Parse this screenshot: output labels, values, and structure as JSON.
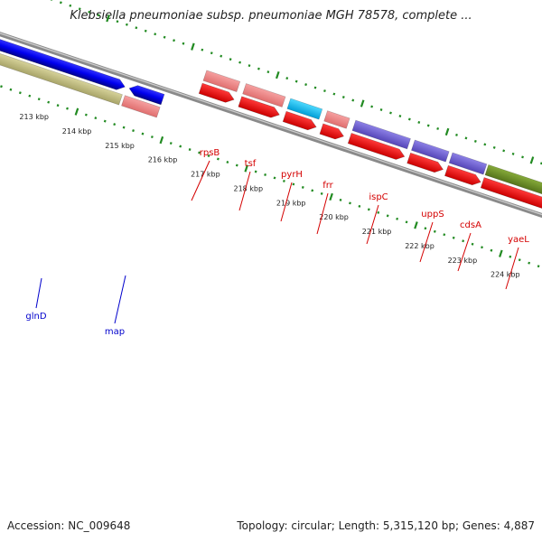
{
  "title": "Klebsiella pneumoniae subsp. pneumoniae MGH 78578, complete ...",
  "accession": "Accession: NC_009648",
  "topology": "Topology: circular; Length: 5,315,120 bp; Genes: 4,887",
  "ticks": [
    "213 kbp",
    "214 kbp",
    "215 kbp",
    "216 kbp",
    "217 kbp",
    "218 kbp",
    "219 kbp",
    "220 kbp",
    "221 kbp",
    "222 kbp",
    "223 kbp",
    "224 kbp"
  ],
  "genes": [
    {
      "name": "rpsB",
      "color": "#d40000"
    },
    {
      "name": "tsf",
      "color": "#d40000"
    },
    {
      "name": "pyrH",
      "color": "#d40000"
    },
    {
      "name": "frr",
      "color": "#d40000"
    },
    {
      "name": "ispC",
      "color": "#d40000"
    },
    {
      "name": "uppS",
      "color": "#d40000"
    },
    {
      "name": "cdsA",
      "color": "#d40000"
    },
    {
      "name": "yaeL",
      "color": "#d40000"
    },
    {
      "name": "glnD",
      "color": "#0000cc"
    },
    {
      "name": "map",
      "color": "#0000cc"
    }
  ],
  "colors": {
    "backbone": "#888888",
    "gc_dots": "#228b22",
    "cds_forward": "#ff0000",
    "cds_reverse": "#0000ff",
    "gene_light_red": "#f08080",
    "gene_cyan": "#00bfff",
    "gene_purple": "#6a5acd",
    "gene_olive": "#6b8e23",
    "gene_khaki": "#bdb76b"
  }
}
